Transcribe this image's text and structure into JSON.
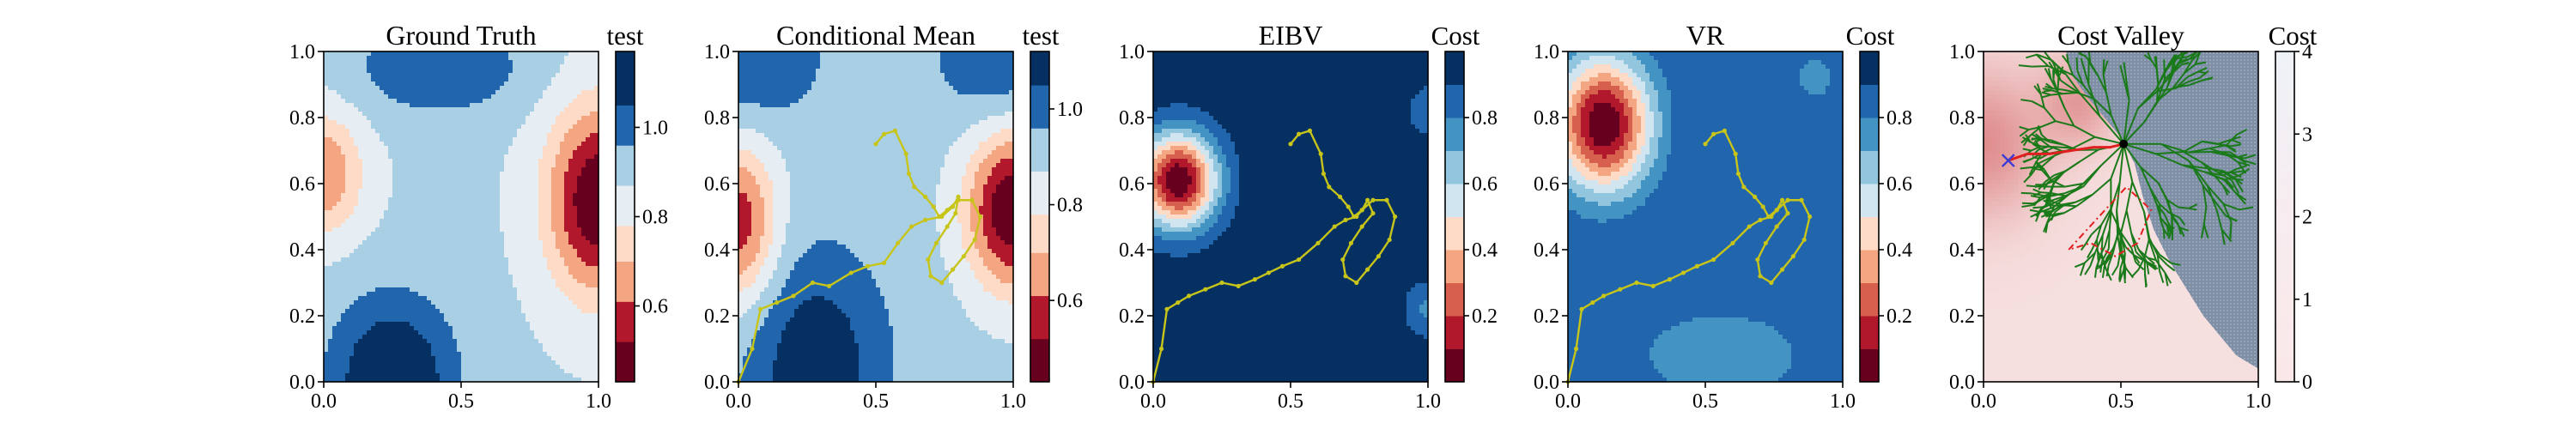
{
  "chart_data": [
    {
      "type": "heatmap",
      "panel": "ground_truth",
      "title": "Ground Truth",
      "xlim": [
        0,
        1
      ],
      "ylim": [
        0,
        1
      ],
      "x_ticks": [
        "0.0",
        "0.5",
        "1.0"
      ],
      "y_ticks": [
        "0.0",
        "0.2",
        "0.4",
        "0.6",
        "0.8",
        "1.0"
      ],
      "colorbar": {
        "title": "test",
        "range": [
          0.43,
          1.17
        ],
        "levels": [
          0.43,
          0.52,
          0.61,
          0.7,
          0.78,
          0.87,
          0.96,
          1.05,
          1.17
        ],
        "ticks": [
          "0.6",
          "0.8",
          "1.0"
        ],
        "tick_values": [
          0.6,
          0.8,
          1.0
        ]
      },
      "field_features": [
        {
          "x": 1.0,
          "y": 0.55,
          "value": 0.43,
          "sx": 0.13,
          "sy": 0.2
        },
        {
          "x": 0.0,
          "y": 0.63,
          "value": 0.62,
          "sx": 0.1,
          "sy": 0.13
        },
        {
          "x": 0.25,
          "y": 0.0,
          "value": 1.17,
          "sx": 0.16,
          "sy": 0.18
        },
        {
          "x": 0.42,
          "y": 0.95,
          "value": 1.05,
          "sx": 0.22,
          "sy": 0.1
        }
      ]
    },
    {
      "type": "heatmap",
      "panel": "conditional_mean",
      "title": "Conditional Mean",
      "xlim": [
        0,
        1
      ],
      "ylim": [
        0,
        1
      ],
      "x_ticks": [
        "0.0",
        "0.5",
        "1.0"
      ],
      "y_ticks": [
        "0.0",
        "0.2",
        "0.4",
        "0.6",
        "0.8",
        "1.0"
      ],
      "colorbar": {
        "title": "test",
        "range": [
          0.43,
          1.12
        ],
        "levels": [
          0.43,
          0.52,
          0.61,
          0.7,
          0.78,
          0.87,
          0.96,
          1.05,
          1.12
        ],
        "ticks": [
          "0.6",
          "0.8",
          "1.0"
        ],
        "tick_values": [
          0.6,
          0.8,
          1.0
        ]
      },
      "field_features": [
        {
          "x": 1.0,
          "y": 0.52,
          "value": 0.43,
          "sx": 0.12,
          "sy": 0.17
        },
        {
          "x": 0.0,
          "y": 0.48,
          "value": 0.55,
          "sx": 0.1,
          "sy": 0.17
        },
        {
          "x": 0.28,
          "y": 0.05,
          "value": 1.12,
          "sx": 0.18,
          "sy": 0.24
        },
        {
          "x": 0.05,
          "y": 0.98,
          "value": 1.05,
          "sx": 0.18,
          "sy": 0.14
        },
        {
          "x": 0.95,
          "y": 0.98,
          "value": 1.05,
          "sx": 0.16,
          "sy": 0.14
        }
      ],
      "path": {
        "color": "#c7c41a",
        "x": [
          0.0,
          0.05,
          0.08,
          0.14,
          0.2,
          0.27,
          0.33,
          0.41,
          0.47,
          0.53,
          0.58,
          0.63,
          0.68,
          0.74,
          0.78,
          0.8,
          0.79,
          0.76,
          0.72,
          0.69,
          0.7,
          0.74,
          0.78,
          0.82,
          0.86,
          0.88,
          0.85,
          0.8,
          0.76,
          0.73,
          0.71,
          0.68,
          0.64,
          0.62,
          0.61,
          0.57,
          0.53,
          0.5
        ],
        "y": [
          0.0,
          0.1,
          0.22,
          0.24,
          0.26,
          0.3,
          0.29,
          0.33,
          0.35,
          0.36,
          0.42,
          0.47,
          0.49,
          0.5,
          0.53,
          0.56,
          0.51,
          0.47,
          0.42,
          0.37,
          0.32,
          0.3,
          0.34,
          0.38,
          0.43,
          0.5,
          0.55,
          0.55,
          0.52,
          0.5,
          0.53,
          0.56,
          0.59,
          0.63,
          0.69,
          0.76,
          0.75,
          0.72
        ]
      }
    },
    {
      "type": "heatmap",
      "panel": "eibv",
      "title": "EIBV",
      "xlim": [
        0,
        1
      ],
      "ylim": [
        0,
        1
      ],
      "x_ticks": [
        "0.0",
        "0.5",
        "1.0"
      ],
      "y_ticks": [
        "0.0",
        "0.2",
        "0.4",
        "0.6",
        "0.8",
        "1.0"
      ],
      "colorbar": {
        "title": "Cost",
        "range": [
          0.0,
          1.0
        ],
        "levels": [
          0.0,
          0.1,
          0.2,
          0.3,
          0.4,
          0.5,
          0.6,
          0.7,
          0.8,
          0.9,
          1.0
        ],
        "ticks": [
          "0.2",
          "0.4",
          "0.6",
          "0.8"
        ],
        "tick_values": [
          0.2,
          0.4,
          0.6,
          0.8
        ]
      },
      "field_features": [
        {
          "x": 0.09,
          "y": 0.61,
          "value": 0.0,
          "sx": 0.1,
          "sy": 0.1
        },
        {
          "x": 1.0,
          "y": 0.22,
          "value": 0.78,
          "sx": 0.06,
          "sy": 0.06
        },
        {
          "x": 1.0,
          "y": 0.82,
          "value": 0.85,
          "sx": 0.06,
          "sy": 0.07
        }
      ],
      "path": {
        "color": "#c7c41a",
        "x": [
          0.0,
          0.03,
          0.05,
          0.09,
          0.13,
          0.19,
          0.25,
          0.31,
          0.37,
          0.42,
          0.47,
          0.53,
          0.6,
          0.66,
          0.7,
          0.74,
          0.76,
          0.78,
          0.8,
          0.76,
          0.72,
          0.69,
          0.7,
          0.74,
          0.78,
          0.82,
          0.86,
          0.88,
          0.85,
          0.8,
          0.76,
          0.73,
          0.71,
          0.68,
          0.64,
          0.62,
          0.61,
          0.57,
          0.53,
          0.5
        ],
        "y": [
          0.0,
          0.1,
          0.22,
          0.24,
          0.26,
          0.28,
          0.3,
          0.29,
          0.31,
          0.33,
          0.35,
          0.37,
          0.42,
          0.47,
          0.49,
          0.5,
          0.52,
          0.55,
          0.51,
          0.47,
          0.42,
          0.37,
          0.32,
          0.3,
          0.34,
          0.38,
          0.43,
          0.5,
          0.55,
          0.55,
          0.52,
          0.5,
          0.53,
          0.56,
          0.59,
          0.63,
          0.69,
          0.76,
          0.75,
          0.72
        ]
      }
    },
    {
      "type": "heatmap",
      "panel": "vr",
      "title": "VR",
      "xlim": [
        0,
        1
      ],
      "ylim": [
        0,
        1
      ],
      "x_ticks": [
        "0.0",
        "0.5",
        "1.0"
      ],
      "y_ticks": [
        "0.0",
        "0.2",
        "0.4",
        "0.6",
        "0.8",
        "1.0"
      ],
      "colorbar": {
        "title": "Cost",
        "range": [
          0.0,
          1.0
        ],
        "levels": [
          0.0,
          0.1,
          0.2,
          0.3,
          0.4,
          0.5,
          0.6,
          0.7,
          0.8,
          0.9,
          1.0
        ],
        "ticks": [
          "0.2",
          "0.4",
          "0.6",
          "0.8"
        ],
        "tick_values": [
          0.2,
          0.4,
          0.6,
          0.8
        ]
      },
      "field_features": [
        {
          "x": 0.13,
          "y": 0.78,
          "value": 0.0,
          "sx": 0.12,
          "sy": 0.14
        },
        {
          "x": 0.56,
          "y": 0.08,
          "value": 0.7,
          "sx": 0.22,
          "sy": 0.1
        },
        {
          "x": 0.9,
          "y": 0.92,
          "value": 0.75,
          "sx": 0.06,
          "sy": 0.06
        }
      ],
      "path": {
        "color": "#c7c41a",
        "x": [
          0.0,
          0.03,
          0.05,
          0.09,
          0.13,
          0.19,
          0.25,
          0.31,
          0.37,
          0.42,
          0.47,
          0.53,
          0.6,
          0.66,
          0.7,
          0.74,
          0.76,
          0.78,
          0.8,
          0.76,
          0.72,
          0.69,
          0.7,
          0.74,
          0.78,
          0.82,
          0.86,
          0.88,
          0.85,
          0.8,
          0.76,
          0.73,
          0.71,
          0.68,
          0.64,
          0.62,
          0.61,
          0.57,
          0.53,
          0.5
        ],
        "y": [
          0.0,
          0.1,
          0.22,
          0.24,
          0.26,
          0.28,
          0.3,
          0.29,
          0.31,
          0.33,
          0.35,
          0.37,
          0.42,
          0.47,
          0.49,
          0.5,
          0.52,
          0.55,
          0.51,
          0.47,
          0.42,
          0.37,
          0.32,
          0.3,
          0.34,
          0.38,
          0.43,
          0.5,
          0.55,
          0.55,
          0.52,
          0.5,
          0.53,
          0.56,
          0.59,
          0.63,
          0.69,
          0.76,
          0.75,
          0.72
        ]
      }
    },
    {
      "type": "heatmap",
      "panel": "cost_valley",
      "title": "Cost Valley",
      "xlim": [
        0,
        1
      ],
      "ylim": [
        0,
        1
      ],
      "x_ticks": [
        "0.0",
        "0.5",
        "1.0"
      ],
      "y_ticks": [
        "0.0",
        "0.2",
        "0.4",
        "0.6",
        "0.8",
        "1.0"
      ],
      "colorbar": {
        "title": "Cost",
        "range": [
          0,
          4
        ],
        "ticks": [
          "0",
          "1",
          "2",
          "3",
          "4"
        ],
        "tick_values": [
          0,
          1,
          2,
          3,
          4
        ]
      },
      "masked_region_color": "#7d8ea5",
      "masked_region_boundary": {
        "x": [
          0.3,
          0.32,
          0.38,
          0.44,
          0.5,
          0.55,
          0.58,
          0.62,
          0.68,
          0.74,
          0.8,
          0.86,
          0.92,
          1.0
        ],
        "y": [
          1.0,
          0.93,
          0.86,
          0.8,
          0.74,
          0.66,
          0.56,
          0.46,
          0.36,
          0.28,
          0.2,
          0.14,
          0.08,
          0.04
        ]
      },
      "start_point": {
        "x": 0.09,
        "y": 0.67,
        "marker": "x",
        "color": "#3b3bd6"
      },
      "current_point": {
        "x": 0.51,
        "y": 0.72,
        "marker": "dot",
        "color": "#000000"
      },
      "planned_route": {
        "color": "#e02020",
        "x": [
          0.09,
          0.16,
          0.24,
          0.32,
          0.4,
          0.46,
          0.51
        ],
        "y": [
          0.67,
          0.69,
          0.69,
          0.7,
          0.71,
          0.71,
          0.72
        ]
      },
      "budget_polygon": {
        "color": "#e02020",
        "x": [
          0.31,
          0.42,
          0.52,
          0.61,
          0.56,
          0.48,
          0.39,
          0.31
        ],
        "y": [
          0.4,
          0.5,
          0.59,
          0.52,
          0.42,
          0.38,
          0.42,
          0.4
        ]
      },
      "tree_color": "#1a7a1a",
      "tree_seed": 7
    }
  ]
}
